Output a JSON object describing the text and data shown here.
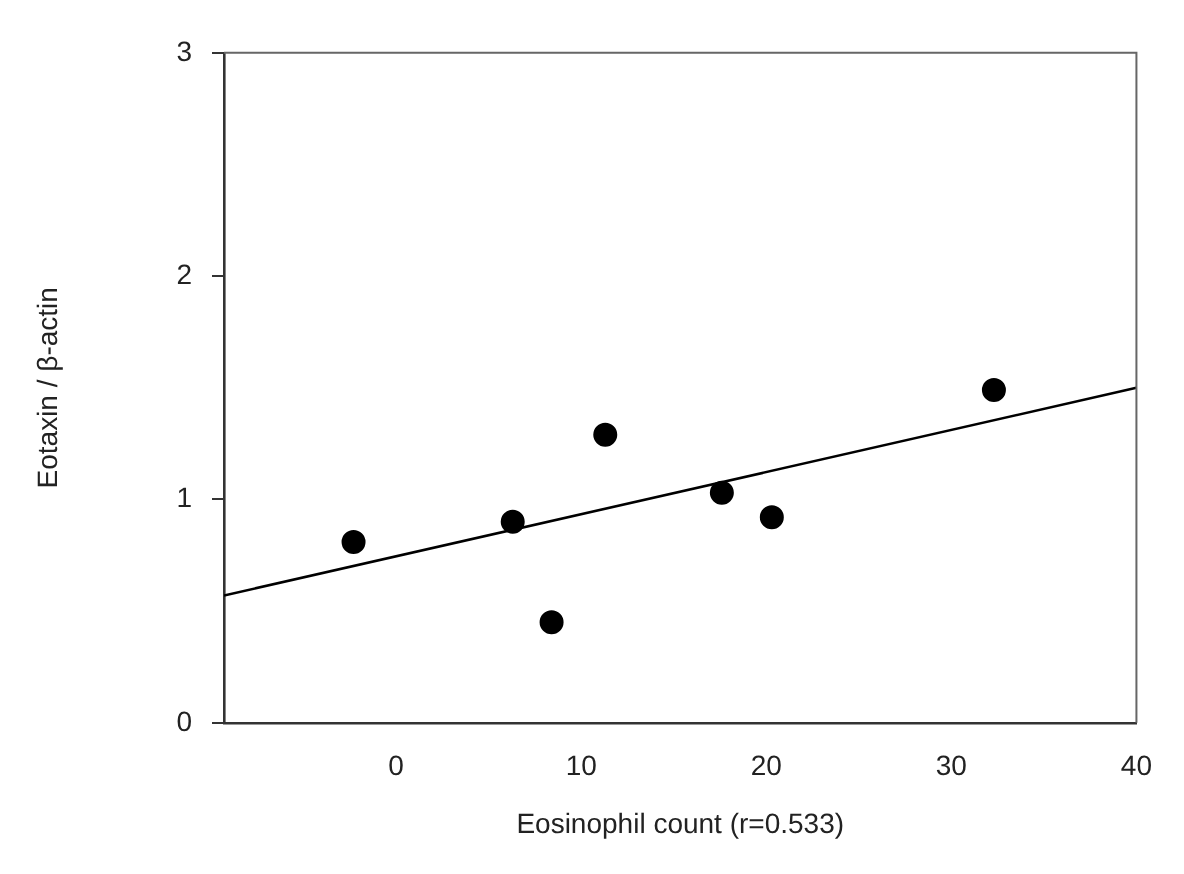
{
  "chart_data": {
    "type": "scatter",
    "xlabel": "Eosinophil count (r=0.533)",
    "ylabel": "Eotaxin / β-actin",
    "xlim": [
      -9.3,
      40
    ],
    "ylim": [
      0,
      3
    ],
    "xticks": [
      0,
      10,
      20,
      30,
      40
    ],
    "yticks": [
      0,
      1,
      2,
      3
    ],
    "grid": false,
    "legend": false,
    "marker": "circle",
    "series": [
      {
        "type": "scatter",
        "color": "#000000",
        "x": [
          -2.3,
          6.3,
          8.4,
          11.3,
          17.6,
          20.3,
          32.3
        ],
        "values": [
          0.81,
          0.9,
          0.45,
          1.29,
          1.03,
          0.92,
          1.49
        ]
      },
      {
        "type": "line",
        "color": "#000000",
        "x": [
          -9.3,
          40
        ],
        "values": [
          0.57,
          1.5
        ],
        "marker": "none",
        "line_style": "solid"
      }
    ]
  }
}
